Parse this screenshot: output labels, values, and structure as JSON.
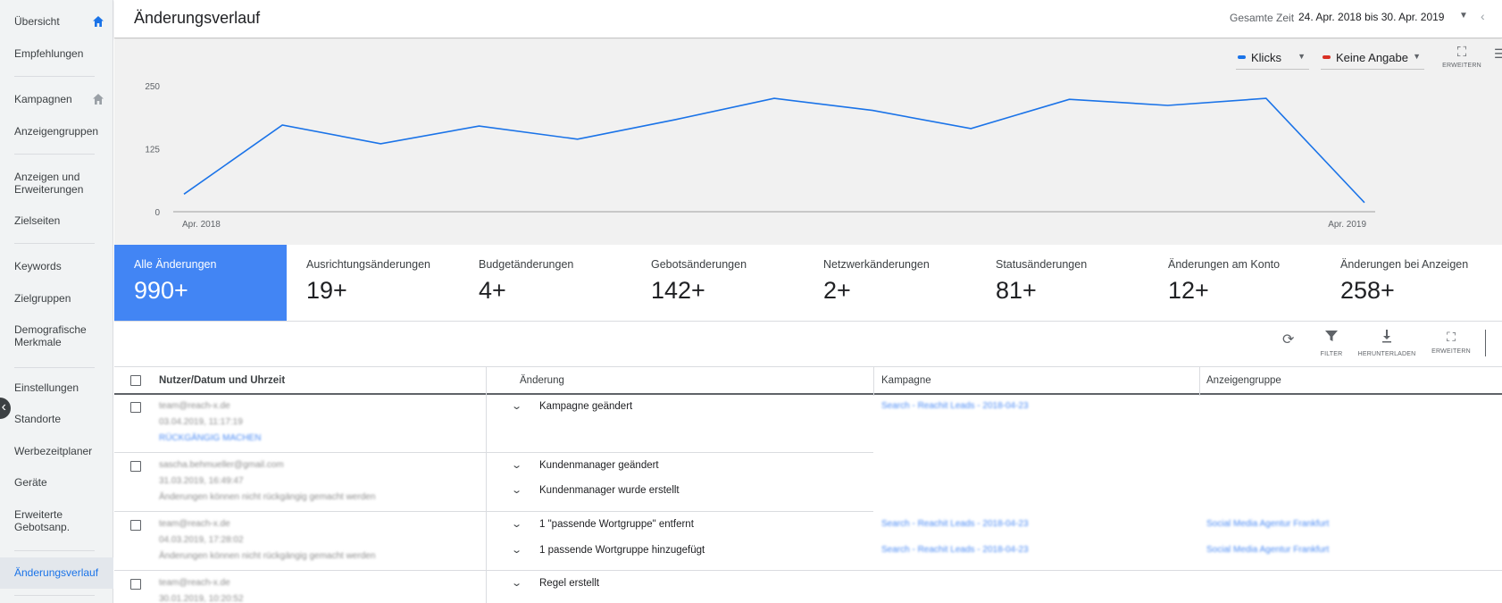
{
  "sidebar": {
    "items": [
      {
        "label": "Übersicht"
      },
      {
        "label": "Empfehlungen"
      },
      {
        "label": "Kampagnen"
      },
      {
        "label": "Anzeigengruppen"
      },
      {
        "label": "Anzeigen und Erweiterungen"
      },
      {
        "label": "Zielseiten"
      },
      {
        "label": "Keywords"
      },
      {
        "label": "Zielgruppen"
      },
      {
        "label": "Demografische Merkmale"
      },
      {
        "label": "Einstellungen"
      },
      {
        "label": "Standorte"
      },
      {
        "label": "Werbezeitplaner"
      },
      {
        "label": "Geräte"
      },
      {
        "label": "Erweiterte Gebotsanp."
      },
      {
        "label": "Änderungsverlauf",
        "active": true
      }
    ]
  },
  "header": {
    "title": "Änderungsverlauf",
    "range_label": "Gesamte Zeit",
    "range_value": "24. Apr. 2018 bis 30. Apr. 2019"
  },
  "chart_controls": {
    "metric1": {
      "label": "Klicks",
      "color": "#1a73e8"
    },
    "metric2": {
      "label": "Keine Angabe",
      "color": "#d93025"
    },
    "expand_label": "ERWEITERN"
  },
  "chart_data": {
    "type": "line",
    "series": [
      {
        "name": "Klicks",
        "values": [
          35,
          172,
          135,
          170,
          144,
          183,
          225,
          201,
          165,
          223,
          211,
          225,
          18
        ]
      }
    ],
    "x_start_label": "Apr. 2018",
    "x_end_label": "Apr. 2019",
    "yticks": [
      0,
      125,
      250
    ],
    "ylim": [
      0,
      250
    ],
    "grid": false,
    "color": "#1a73e8"
  },
  "cards": [
    {
      "label": "Alle Änderungen",
      "value": "990+",
      "active": true
    },
    {
      "label": "Ausrichtungsänderungen",
      "value": "19+"
    },
    {
      "label": "Budgetänderungen",
      "value": "4+"
    },
    {
      "label": "Gebotsänderungen",
      "value": "142+"
    },
    {
      "label": "Netzwerkänderungen",
      "value": "2+"
    },
    {
      "label": "Statusänderungen",
      "value": "81+"
    },
    {
      "label": "Änderungen am Konto",
      "value": "12+"
    },
    {
      "label": "Änderungen bei Anzeigen",
      "value": "258+"
    }
  ],
  "toolbar": {
    "filter_label": "FILTER",
    "download_label": "HERUNTERLADEN",
    "expand_label": "ERWEITERN"
  },
  "table": {
    "headers": {
      "user": "Nutzer/Datum und Uhrzeit",
      "change": "Änderung",
      "campaign": "Kampagne",
      "adgroup": "Anzeigengruppe"
    },
    "rows": [
      {
        "user": "team@reach-x.de",
        "date": "03.04.2019, 11:17:19",
        "note": "RÜCKGÄNGIG MACHEN",
        "changes": [
          "Kampagne geändert"
        ],
        "campaigns": [
          "Search - Reachit Leads - 2018-04-23"
        ],
        "adgroups": []
      },
      {
        "user": "sascha.behmueller@gmail.com",
        "date": "31.03.2019, 16:49:47",
        "note": "Änderungen können nicht rückgängig gemacht werden",
        "changes": [
          "Kundenmanager geändert",
          "Kundenmanager wurde erstellt"
        ],
        "campaigns": [],
        "adgroups": []
      },
      {
        "user": "team@reach-x.de",
        "date": "04.03.2019, 17:28:02",
        "note": "Änderungen können nicht rückgängig gemacht werden",
        "changes": [
          "1 \"passende Wortgruppe\" entfernt",
          "1 passende Wortgruppe hinzugefügt"
        ],
        "campaigns": [
          "Search - Reachit Leads - 2018-04-23",
          "Search - Reachit Leads - 2018-04-23"
        ],
        "adgroups": [
          "Social Media Agentur Frankfurt",
          "Social Media Agentur Frankfurt"
        ]
      },
      {
        "user": "team@reach-x.de",
        "date": "30.01.2019, 10:20:52",
        "note": "",
        "changes": [
          "Regel erstellt"
        ],
        "campaigns": [],
        "adgroups": []
      }
    ]
  }
}
